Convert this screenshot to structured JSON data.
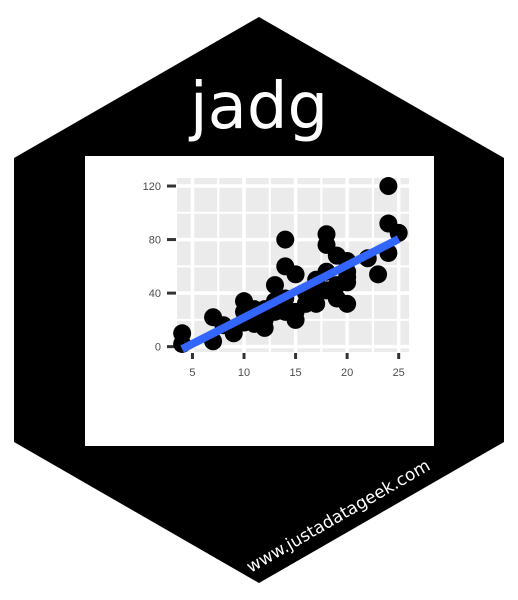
{
  "title": "jadg",
  "url": "www.justadatageek.com",
  "colors": {
    "hex_fill": "#000000",
    "plot_card": "#ffffff",
    "panel": "#ebebeb",
    "grid": "#ffffff",
    "points": "#000000",
    "trend": "#3366ff",
    "text": "#ffffff"
  },
  "chart_data": {
    "type": "scatter",
    "title": "",
    "xlabel": "",
    "ylabel": "",
    "xlim": [
      3.5,
      26
    ],
    "ylim": [
      -4,
      126
    ],
    "x_ticks": [
      5,
      10,
      15,
      20,
      25
    ],
    "y_ticks": [
      0,
      40,
      80,
      120
    ],
    "grid": true,
    "points": [
      {
        "x": 4,
        "y": 2
      },
      {
        "x": 4,
        "y": 10
      },
      {
        "x": 7,
        "y": 4
      },
      {
        "x": 7,
        "y": 22
      },
      {
        "x": 8,
        "y": 16
      },
      {
        "x": 9,
        "y": 10
      },
      {
        "x": 10,
        "y": 18
      },
      {
        "x": 10,
        "y": 26
      },
      {
        "x": 10,
        "y": 34
      },
      {
        "x": 11,
        "y": 17
      },
      {
        "x": 11,
        "y": 28
      },
      {
        "x": 12,
        "y": 14
      },
      {
        "x": 12,
        "y": 20
      },
      {
        "x": 12,
        "y": 24
      },
      {
        "x": 12,
        "y": 28
      },
      {
        "x": 13,
        "y": 26
      },
      {
        "x": 13,
        "y": 34
      },
      {
        "x": 13,
        "y": 46
      },
      {
        "x": 14,
        "y": 26
      },
      {
        "x": 14,
        "y": 36
      },
      {
        "x": 14,
        "y": 60
      },
      {
        "x": 14,
        "y": 80
      },
      {
        "x": 15,
        "y": 20
      },
      {
        "x": 15,
        "y": 26
      },
      {
        "x": 15,
        "y": 54
      },
      {
        "x": 16,
        "y": 32
      },
      {
        "x": 16,
        "y": 40
      },
      {
        "x": 17,
        "y": 32
      },
      {
        "x": 17,
        "y": 40
      },
      {
        "x": 17,
        "y": 50
      },
      {
        "x": 18,
        "y": 42
      },
      {
        "x": 18,
        "y": 56
      },
      {
        "x": 18,
        "y": 76
      },
      {
        "x": 18,
        "y": 84
      },
      {
        "x": 19,
        "y": 36
      },
      {
        "x": 19,
        "y": 46
      },
      {
        "x": 19,
        "y": 68
      },
      {
        "x": 20,
        "y": 32
      },
      {
        "x": 20,
        "y": 48
      },
      {
        "x": 20,
        "y": 52
      },
      {
        "x": 20,
        "y": 56
      },
      {
        "x": 20,
        "y": 64
      },
      {
        "x": 22,
        "y": 66
      },
      {
        "x": 23,
        "y": 54
      },
      {
        "x": 24,
        "y": 70
      },
      {
        "x": 24,
        "y": 92
      },
      {
        "x": 24,
        "y": 120
      },
      {
        "x": 25,
        "y": 85
      }
    ],
    "trend_line": {
      "x": [
        4,
        25
      ],
      "y": [
        -1.8,
        80.4
      ]
    }
  }
}
